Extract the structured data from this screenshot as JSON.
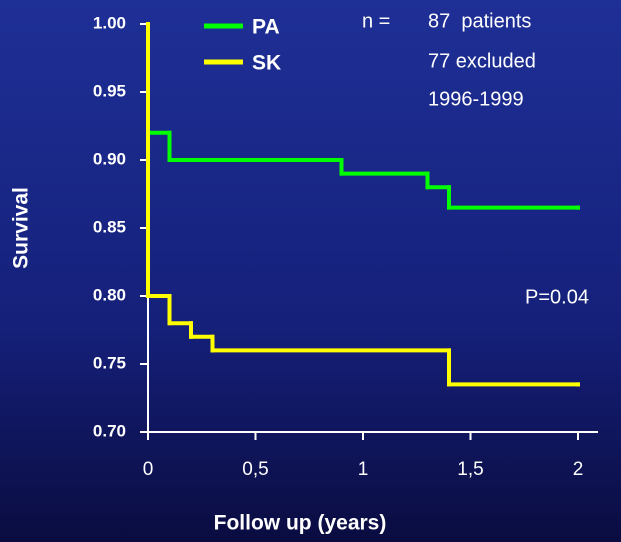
{
  "chart_data": {
    "type": "step",
    "ylabel": "Survival",
    "xlabel": "Follow up (years)",
    "annotations": [
      "n =",
      "87  patients",
      "77 excluded",
      "1996-1999",
      "P=0.04"
    ],
    "series": [
      {
        "name": "PA",
        "color": "#00ff00",
        "x": [
          0,
          0.1,
          0.9,
          1.3,
          1.4,
          2
        ],
        "values": [
          0.92,
          0.9,
          0.89,
          0.88,
          0.865,
          0.865
        ]
      },
      {
        "name": "SK",
        "color": "#ffff00",
        "x": [
          0,
          0,
          0.1,
          0.2,
          0.3,
          1.4,
          2
        ],
        "values": [
          1.0,
          0.8,
          0.78,
          0.77,
          0.76,
          0.735,
          0.735
        ]
      }
    ],
    "xlim": [
      0,
      2
    ],
    "xticks": [
      0,
      {
        "value": 0.5,
        "label": "0,5"
      },
      1,
      {
        "value": 1.5,
        "label": "1,5"
      },
      2
    ],
    "ylim": [
      0.7,
      1.0
    ],
    "yticks": [
      {
        "value": 0.7,
        "label": "0.70"
      },
      0.75,
      {
        "value": 0.8,
        "label": "0.80"
      },
      0.85,
      {
        "value": 0.9,
        "label": "0.90"
      },
      0.95,
      {
        "value": 1.0,
        "label": "1.00"
      }
    ]
  }
}
